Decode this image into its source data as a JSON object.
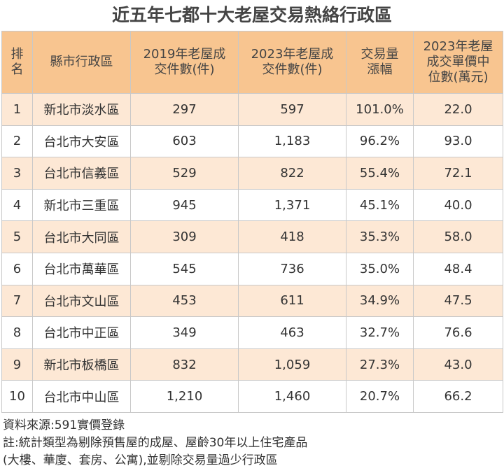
{
  "title": "近五年七都十大老屋交易熱絡行政區",
  "table": {
    "header": [
      "排\n名",
      "縣市行政區",
      "2019年老屋成\n交件數(件)",
      "2023年老屋成\n交件數(件)",
      "交易量\n漲幅",
      "2023年老屋\n成交單價中\n位數(萬元)"
    ],
    "rows": [
      [
        "1",
        "新北市淡水區",
        "297",
        "597",
        "101.0%",
        "22.0"
      ],
      [
        "2",
        "台北市大安區",
        "603",
        "1,183",
        "96.2%",
        "93.0"
      ],
      [
        "3",
        "台北市信義區",
        "529",
        "822",
        "55.4%",
        "72.1"
      ],
      [
        "4",
        "新北市三重區",
        "945",
        "1,371",
        "45.1%",
        "40.0"
      ],
      [
        "5",
        "台北市大同區",
        "309",
        "418",
        "35.3%",
        "58.0"
      ],
      [
        "6",
        "台北市萬華區",
        "545",
        "736",
        "35.0%",
        "48.4"
      ],
      [
        "7",
        "台北市文山區",
        "453",
        "611",
        "34.9%",
        "47.5"
      ],
      [
        "8",
        "台北市中正區",
        "349",
        "463",
        "32.7%",
        "76.6"
      ],
      [
        "9",
        "新北市板橋區",
        "832",
        "1,059",
        "27.3%",
        "43.0"
      ],
      [
        "10",
        "台北市中山區",
        "1,210",
        "1,460",
        "20.7%",
        "66.2"
      ]
    ]
  },
  "notes": [
    "資料來源:591實價登錄",
    "註:統計類型為剔除預售屋的成屋、屋齡30年以上住宅產品",
    "(大樓、華廈、套房、公寓),並剔除交易量過少行政區"
  ]
}
